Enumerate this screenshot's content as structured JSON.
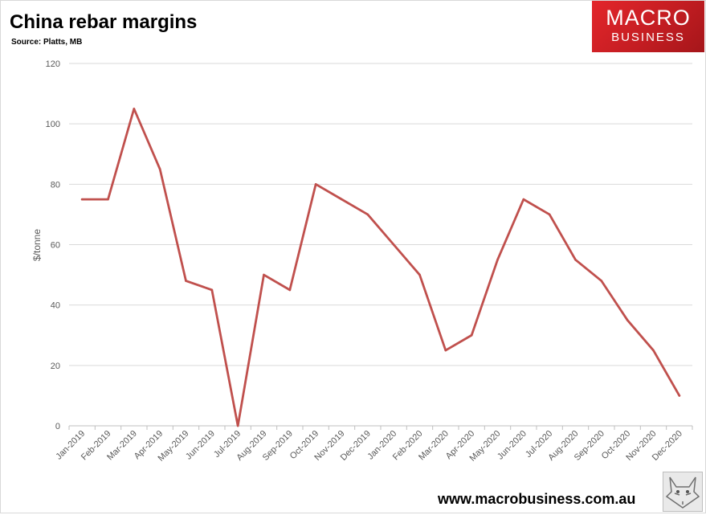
{
  "header": {
    "title": "China rebar margins",
    "subtitle": "Source: Platts, MB"
  },
  "logo": {
    "line1": "MACRO",
    "line2": "BUSINESS",
    "color": "#d9262b"
  },
  "footer": {
    "url": "www.macrobusiness.com.au",
    "emblem_icon": "fox-icon"
  },
  "chart_data": {
    "type": "line",
    "title": "China rebar margins",
    "subtitle": "Source: Platts, MB",
    "xlabel": "",
    "ylabel": "$/tonne",
    "ylim": [
      0,
      120
    ],
    "yticks": [
      0,
      20,
      40,
      60,
      80,
      100,
      120
    ],
    "grid": true,
    "categories": [
      "Jan-2019",
      "Feb-2019",
      "Mar-2019",
      "Apr-2019",
      "May-2019",
      "Jun-2019",
      "Jul-2019",
      "Aug-2019",
      "Sep-2019",
      "Oct-2019",
      "Nov-2019",
      "Dec-2019",
      "Jan-2020",
      "Feb-2020",
      "Mar-2020",
      "Apr-2020",
      "May-2020",
      "Jun-2020",
      "Jul-2020",
      "Aug-2020",
      "Sep-2020",
      "Oct-2020",
      "Nov-2020",
      "Dec-2020"
    ],
    "series": [
      {
        "color": "#c0504d",
        "values": [
          75,
          75,
          105,
          85,
          48,
          45,
          0,
          50,
          45,
          80,
          75,
          70,
          60,
          50,
          25,
          30,
          55,
          75,
          70,
          55,
          48,
          35,
          25,
          10
        ]
      }
    ]
  }
}
